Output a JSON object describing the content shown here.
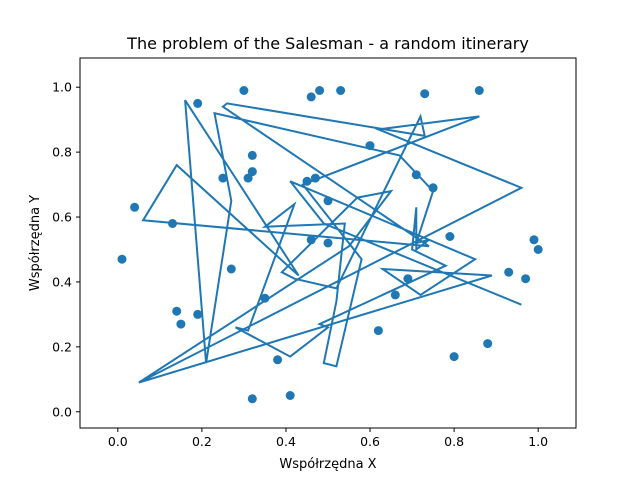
{
  "chart_data": {
    "type": "scatter",
    "title": "The problem of the Salesman - a random itinerary",
    "xlabel": "Współrzędna X",
    "ylabel": "Współrzędna Y",
    "xlim": [
      -0.09,
      1.09
    ],
    "ylim": [
      -0.05,
      1.09
    ],
    "xticks": [
      "0.0",
      "0.2",
      "0.4",
      "0.6",
      "0.8",
      "1.0"
    ],
    "yticks": [
      "0.0",
      "0.2",
      "0.4",
      "0.6",
      "0.8",
      "1.0"
    ],
    "grid": false,
    "color": "#1f77b4",
    "points": {
      "x": [
        0.3,
        0.19,
        0.46,
        0.48,
        0.53,
        0.73,
        0.86,
        0.32,
        0.6,
        0.25,
        0.31,
        0.32,
        0.45,
        0.47,
        0.5,
        0.71,
        0.75,
        0.04,
        0.13,
        0.27,
        0.46,
        0.5,
        0.79,
        0.99,
        1.0,
        0.01,
        0.69,
        0.93,
        0.97,
        0.66,
        0.35,
        0.14,
        0.15,
        0.19,
        0.62,
        0.38,
        0.8,
        0.88,
        0.32,
        0.41
      ],
      "y": [
        0.99,
        0.95,
        0.97,
        0.99,
        0.99,
        0.98,
        0.99,
        0.79,
        0.82,
        0.72,
        0.72,
        0.74,
        0.71,
        0.72,
        0.65,
        0.73,
        0.69,
        0.63,
        0.58,
        0.44,
        0.53,
        0.52,
        0.54,
        0.53,
        0.5,
        0.47,
        0.41,
        0.43,
        0.41,
        0.36,
        0.35,
        0.31,
        0.27,
        0.3,
        0.25,
        0.16,
        0.17,
        0.21,
        0.04,
        0.05
      ]
    },
    "route": {
      "x": [
        0.05,
        0.55,
        0.65,
        0.57,
        0.39,
        0.42,
        0.52,
        0.72,
        0.73,
        0.26,
        0.25,
        0.74,
        0.06,
        0.14,
        0.43,
        0.16,
        0.21,
        0.27,
        0.23,
        0.67,
        0.75,
        0.71,
        0.74,
        0.71,
        0.71,
        0.7,
        0.78,
        0.48,
        0.5,
        0.41,
        0.28,
        0.31,
        0.42,
        0.35,
        0.54,
        0.52,
        0.49,
        0.52,
        0.58,
        0.44,
        0.86,
        0.62,
        0.96,
        0.05,
        0.89,
        0.63,
        0.72,
        0.85,
        0.41,
        0.49,
        0.96
      ],
      "y": [
        0.09,
        0.51,
        0.68,
        0.66,
        0.43,
        0.41,
        0.38,
        0.91,
        0.85,
        0.95,
        0.94,
        0.51,
        0.59,
        0.76,
        0.42,
        0.96,
        0.15,
        0.65,
        0.92,
        0.79,
        0.68,
        0.52,
        0.53,
        0.5,
        0.63,
        0.5,
        0.45,
        0.27,
        0.26,
        0.17,
        0.26,
        0.25,
        0.64,
        0.57,
        0.58,
        0.34,
        0.15,
        0.14,
        0.47,
        0.7,
        0.91,
        0.87,
        0.69,
        0.09,
        0.42,
        0.44,
        0.36,
        0.47,
        0.71,
        0.58,
        0.33
      ]
    }
  }
}
